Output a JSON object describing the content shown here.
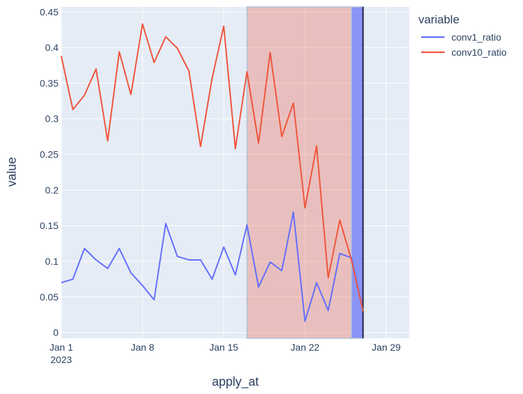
{
  "chart_data": {
    "type": "line",
    "xlabel": "apply_at",
    "ylabel": "value",
    "x_ticks": [
      {
        "date": "2023-01-01",
        "label": "Jan 1",
        "sublabel": "2023"
      },
      {
        "date": "2023-01-08",
        "label": "Jan 8",
        "sublabel": ""
      },
      {
        "date": "2023-01-15",
        "label": "Jan 15",
        "sublabel": ""
      },
      {
        "date": "2023-01-22",
        "label": "Jan 22",
        "sublabel": ""
      },
      {
        "date": "2023-01-29",
        "label": "Jan 29",
        "sublabel": ""
      }
    ],
    "xlim": [
      "2023-01-01",
      "2023-01-31"
    ],
    "y_ticks": [
      0,
      0.05,
      0.1,
      0.15,
      0.2,
      0.25,
      0.3,
      0.35,
      0.4,
      0.45
    ],
    "y_tick_labels": [
      "0",
      "0.05",
      "0.1",
      "0.15",
      "0.2",
      "0.25",
      "0.3",
      "0.35",
      "0.4",
      "0.45"
    ],
    "ylim": [
      -0.008,
      0.457
    ],
    "x": [
      "2023-01-01",
      "2023-01-02",
      "2023-01-03",
      "2023-01-04",
      "2023-01-05",
      "2023-01-06",
      "2023-01-07",
      "2023-01-08",
      "2023-01-09",
      "2023-01-10",
      "2023-01-11",
      "2023-01-12",
      "2023-01-13",
      "2023-01-14",
      "2023-01-15",
      "2023-01-16",
      "2023-01-17",
      "2023-01-18",
      "2023-01-19",
      "2023-01-20",
      "2023-01-21",
      "2023-01-22",
      "2023-01-23",
      "2023-01-24",
      "2023-01-25",
      "2023-01-26",
      "2023-01-27"
    ],
    "series": [
      {
        "name": "conv1_ratio",
        "color": "#636efa",
        "values": [
          0.07,
          0.075,
          0.118,
          0.102,
          0.09,
          0.118,
          0.084,
          0.066,
          0.046,
          0.153,
          0.107,
          0.102,
          0.102,
          0.075,
          0.12,
          0.081,
          0.151,
          0.064,
          0.099,
          0.087,
          0.169,
          0.016,
          0.07,
          0.031,
          0.111,
          0.105,
          0.031
        ]
      },
      {
        "name": "conv10_ratio",
        "color": "#ef553b",
        "values": [
          0.388,
          0.313,
          0.333,
          0.37,
          0.269,
          0.394,
          0.334,
          0.433,
          0.379,
          0.415,
          0.399,
          0.367,
          0.261,
          0.357,
          0.43,
          0.258,
          0.366,
          0.266,
          0.393,
          0.275,
          0.322,
          0.175,
          0.262,
          0.077,
          0.158,
          0.102,
          0.03
        ]
      }
    ],
    "shaded_regions": [
      {
        "start": "2023-01-17",
        "end": "2023-01-26",
        "color": "#ef553b",
        "opacity": 0.3
      },
      {
        "start": "2023-01-26",
        "end": "2023-01-27",
        "color": "#636efa",
        "opacity": 0.7
      }
    ],
    "vertical_line": {
      "date": "2023-01-27",
      "color": "#1f2137"
    },
    "grid": true,
    "legend": {
      "title": "variable",
      "placement": "right"
    }
  }
}
